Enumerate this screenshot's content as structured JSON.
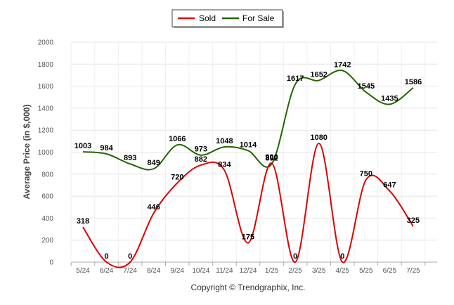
{
  "chart_data": {
    "type": "line",
    "ylabel": "Average Price (in $,000)",
    "ylim": [
      0,
      2000
    ],
    "yticks": [
      0,
      200,
      400,
      600,
      800,
      1000,
      1200,
      1400,
      1600,
      1800,
      2000
    ],
    "grid": true,
    "legend_position": "top-center",
    "categories": [
      "5/24",
      "6/24",
      "7/24",
      "8/24",
      "9/24",
      "10/24",
      "11/24",
      "12/24",
      "1/25",
      "2/25",
      "3/25",
      "4/25",
      "5/25",
      "6/25",
      "7/25"
    ],
    "series": [
      {
        "name": "Sold",
        "color": "#dd0000",
        "values": [
          318,
          0,
          0,
          446,
          720,
          882,
          834,
          175,
          900,
          0,
          1080,
          0,
          750,
          647,
          325
        ]
      },
      {
        "name": "For Sale",
        "color": "#226600",
        "values": [
          1003,
          984,
          893,
          849,
          1066,
          973,
          1048,
          1014,
          892,
          1617,
          1652,
          1742,
          1545,
          1435,
          1586
        ]
      }
    ]
  },
  "copyright": "Copyright © Trendgraphix, Inc."
}
